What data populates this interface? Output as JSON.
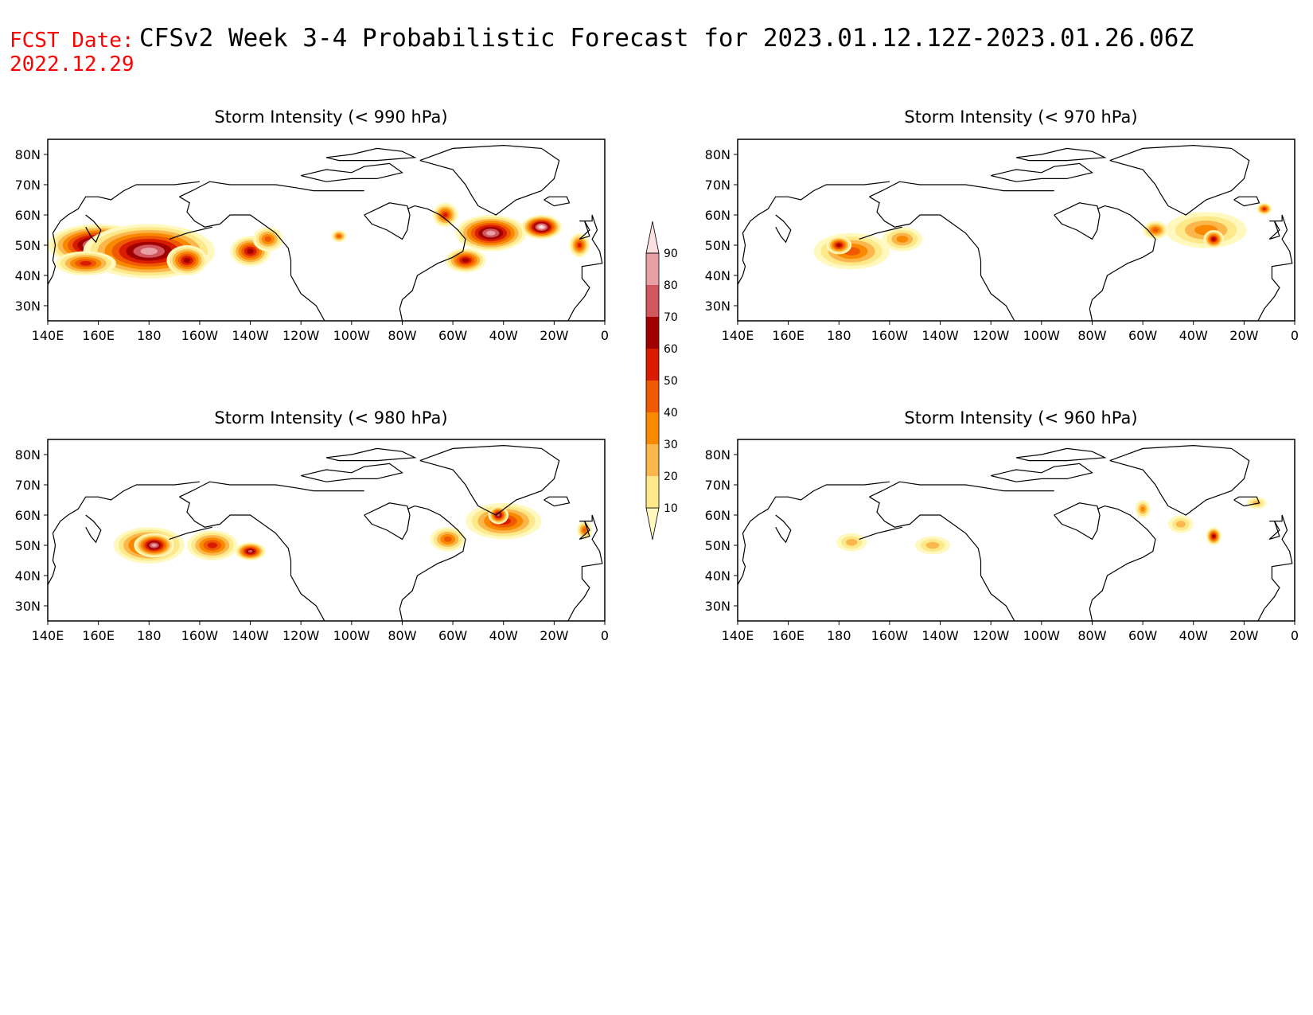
{
  "header": {
    "fcst_label": "FCST Date:",
    "fcst_date": "2022.12.29",
    "title": "CFSv2 Week 3-4 Probabilistic Forecast for 2023.01.12.12Z-2023.01.26.06Z"
  },
  "colors": {
    "red_label": "#ff0000",
    "scale": [
      "#fff9c0",
      "#fde88a",
      "#fbb74c",
      "#f98a00",
      "#ef5a00",
      "#d91c00",
      "#a10000",
      "#d0575e",
      "#e8a0a4",
      "#fbe0e1"
    ]
  },
  "axes": {
    "lon_labels": [
      "140E",
      "160E",
      "180",
      "160W",
      "140W",
      "120W",
      "100W",
      "80W",
      "60W",
      "40W",
      "20W",
      "0"
    ],
    "lat_labels": [
      "80N",
      "70N",
      "60N",
      "50N",
      "40N",
      "30N"
    ]
  },
  "colorbar": {
    "labels": [
      "10",
      "20",
      "30",
      "40",
      "50",
      "60",
      "70",
      "80",
      "90"
    ]
  },
  "panels": [
    {
      "id": "p990",
      "title": "Storm Intensity (< 990 hPa)"
    },
    {
      "id": "p970",
      "title": "Storm Intensity (< 970 hPa)"
    },
    {
      "id": "p980",
      "title": "Storm Intensity (< 980 hPa)"
    },
    {
      "id": "p960",
      "title": "Storm Intensity (< 960 hPa)"
    }
  ],
  "map_data": {
    "p990": [
      {
        "lonW": 200,
        "lat": 50,
        "level": 9,
        "r": [
          20,
          7
        ]
      },
      {
        "lonW": 180,
        "lat": 48,
        "level": 8,
        "r": [
          26,
          9
        ]
      },
      {
        "lonW": 165,
        "lat": 45,
        "level": 6,
        "r": [
          8,
          5
        ]
      },
      {
        "lonW": 140,
        "lat": 48,
        "level": 6,
        "r": [
          8,
          5
        ]
      },
      {
        "lonW": 205,
        "lat": 44,
        "level": 5,
        "r": [
          12,
          4
        ]
      },
      {
        "lonW": 133,
        "lat": 52,
        "level": 4,
        "r": [
          6,
          4
        ]
      },
      {
        "lonW": 45,
        "lat": 54,
        "level": 8,
        "r": [
          14,
          6
        ]
      },
      {
        "lonW": 25,
        "lat": 56,
        "level": 9,
        "r": [
          8,
          4
        ]
      },
      {
        "lonW": 55,
        "lat": 45,
        "level": 6,
        "r": [
          8,
          4
        ]
      },
      {
        "lonW": 63,
        "lat": 60,
        "level": 5,
        "r": [
          5,
          4
        ]
      },
      {
        "lonW": 10,
        "lat": 50,
        "level": 5,
        "r": [
          4,
          4
        ]
      },
      {
        "lonW": 105,
        "lat": 53,
        "level": 4,
        "r": [
          3,
          2
        ]
      }
    ],
    "p970": [
      {
        "lonW": 175,
        "lat": 48,
        "level": 4,
        "r": [
          15,
          6
        ]
      },
      {
        "lonW": 180,
        "lat": 50,
        "level": 6,
        "r": [
          5,
          3
        ]
      },
      {
        "lonW": 155,
        "lat": 52,
        "level": 3,
        "r": [
          8,
          4
        ]
      },
      {
        "lonW": 35,
        "lat": 55,
        "level": 3,
        "r": [
          16,
          6
        ]
      },
      {
        "lonW": 32,
        "lat": 52,
        "level": 6,
        "r": [
          4,
          3
        ]
      },
      {
        "lonW": 55,
        "lat": 55,
        "level": 4,
        "r": [
          5,
          3
        ]
      },
      {
        "lonW": 12,
        "lat": 62,
        "level": 5,
        "r": [
          3,
          2
        ]
      }
    ],
    "p980": [
      {
        "lonW": 180,
        "lat": 50,
        "level": 6,
        "r": [
          14,
          6
        ]
      },
      {
        "lonW": 178,
        "lat": 50,
        "level": 8,
        "r": [
          8,
          4
        ]
      },
      {
        "lonW": 155,
        "lat": 50,
        "level": 5,
        "r": [
          10,
          5
        ]
      },
      {
        "lonW": 140,
        "lat": 48,
        "level": 7,
        "r": [
          6,
          3
        ]
      },
      {
        "lonW": 40,
        "lat": 58,
        "level": 5,
        "r": [
          15,
          6
        ]
      },
      {
        "lonW": 42,
        "lat": 60,
        "level": 7,
        "r": [
          4,
          3
        ]
      },
      {
        "lonW": 62,
        "lat": 52,
        "level": 4,
        "r": [
          7,
          4
        ]
      },
      {
        "lonW": 8,
        "lat": 55,
        "level": 4,
        "r": [
          3,
          3
        ]
      }
    ],
    "p960": [
      {
        "lonW": 175,
        "lat": 51,
        "level": 2,
        "r": [
          6,
          3
        ]
      },
      {
        "lonW": 143,
        "lat": 50,
        "level": 2,
        "r": [
          7,
          3
        ]
      },
      {
        "lonW": 60,
        "lat": 62,
        "level": 3,
        "r": [
          3,
          3
        ]
      },
      {
        "lonW": 45,
        "lat": 57,
        "level": 2,
        "r": [
          5,
          3
        ]
      },
      {
        "lonW": 32,
        "lat": 53,
        "level": 6,
        "r": [
          3,
          3
        ]
      },
      {
        "lonW": 15,
        "lat": 64,
        "level": 2,
        "r": [
          4,
          2
        ]
      }
    ]
  }
}
